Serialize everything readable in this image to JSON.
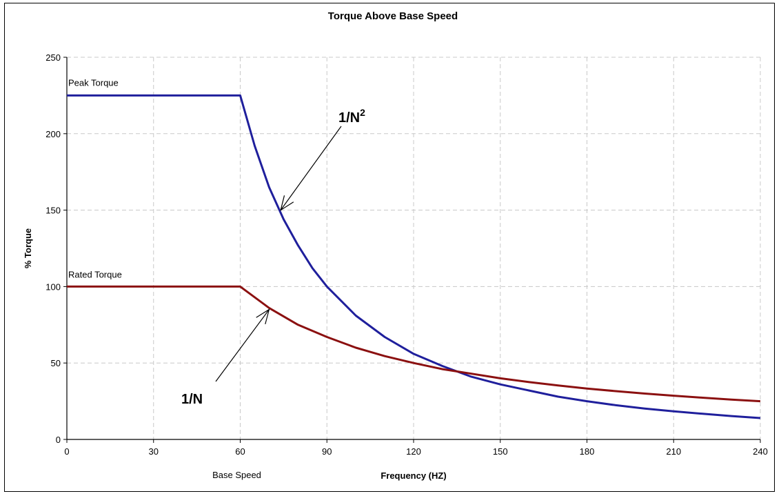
{
  "chart_data": {
    "type": "line",
    "title": "Torque Above Base Speed",
    "xlabel": "Frequency (HZ)",
    "ylabel": "% Torque",
    "xlim": [
      0,
      240
    ],
    "ylim": [
      0,
      250
    ],
    "xticks": [
      "0",
      "30",
      "60",
      "90",
      "120",
      "150",
      "180",
      "210",
      "240"
    ],
    "yticks": [
      "0",
      "50",
      "100",
      "150",
      "200",
      "250"
    ],
    "grid": true,
    "series": [
      {
        "name": "Peak Torque",
        "color": "#1f1f9c",
        "x": [
          0,
          60,
          65,
          70,
          75,
          80,
          85,
          90,
          100,
          110,
          120,
          130,
          140,
          150,
          160,
          170,
          180,
          190,
          200,
          210,
          220,
          230,
          240
        ],
        "y": [
          225,
          225,
          192,
          165,
          144,
          127,
          112,
          100,
          81,
          67,
          56,
          48,
          41,
          36,
          32,
          28,
          25,
          22.4,
          20.2,
          18.4,
          16.8,
          15.3,
          14
        ]
      },
      {
        "name": "Rated Torque",
        "color": "#8b1010",
        "x": [
          0,
          60,
          70,
          80,
          90,
          100,
          110,
          120,
          130,
          140,
          150,
          160,
          170,
          180,
          190,
          200,
          210,
          220,
          230,
          240
        ],
        "y": [
          100,
          100,
          86,
          75,
          67,
          60,
          54.5,
          50,
          46,
          43,
          40,
          37.5,
          35.3,
          33.3,
          31.6,
          30,
          28.6,
          27.3,
          26.1,
          25
        ]
      }
    ],
    "annotations": {
      "base_speed": "Base Speed",
      "inverse_square": "1/N",
      "inverse_square_exp": "2",
      "inverse": "1/N"
    }
  }
}
